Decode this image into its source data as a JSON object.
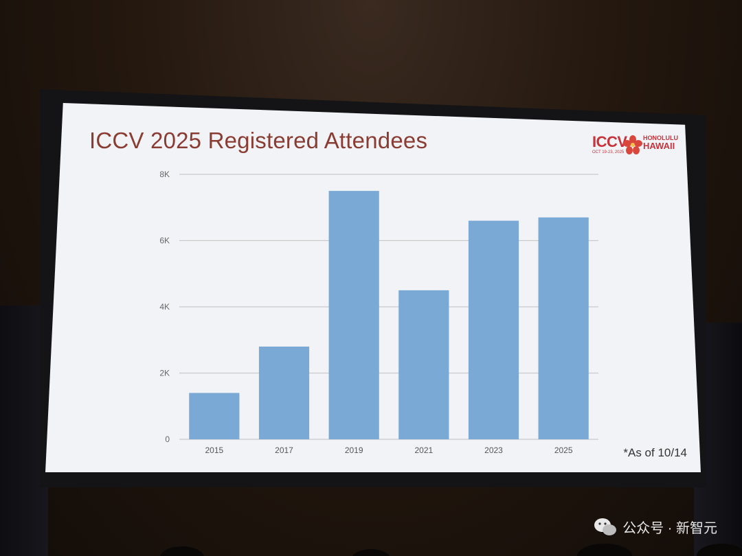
{
  "slide": {
    "title": "ICCV 2025 Registered Attendees",
    "note": "*As of 10/14"
  },
  "logo": {
    "name": "ICCV",
    "location_line1": "HONOLULU",
    "location_line2": "HAWAII",
    "dates": "OCT 19-23, 2025"
  },
  "watermark": {
    "text": "公众号 · 新智元"
  },
  "colors": {
    "bar": "#7aa9d6",
    "title": "#8a3c33",
    "grid": "#c9c9cc",
    "slide_bg": "#f2f3f6"
  },
  "chart_data": {
    "type": "bar",
    "title": "ICCV 2025 Registered Attendees",
    "categories": [
      "2015",
      "2017",
      "2019",
      "2021",
      "2023",
      "2025"
    ],
    "values": [
      1400,
      2800,
      7500,
      4500,
      6600,
      6700
    ],
    "ylim": [
      0,
      8000
    ],
    "yticks": [
      0,
      2000,
      4000,
      6000,
      8000
    ],
    "ytick_labels": [
      "0",
      "2K",
      "4K",
      "6K",
      "8K"
    ],
    "xlabel": "",
    "ylabel": "",
    "grid": true,
    "legend": "none"
  }
}
